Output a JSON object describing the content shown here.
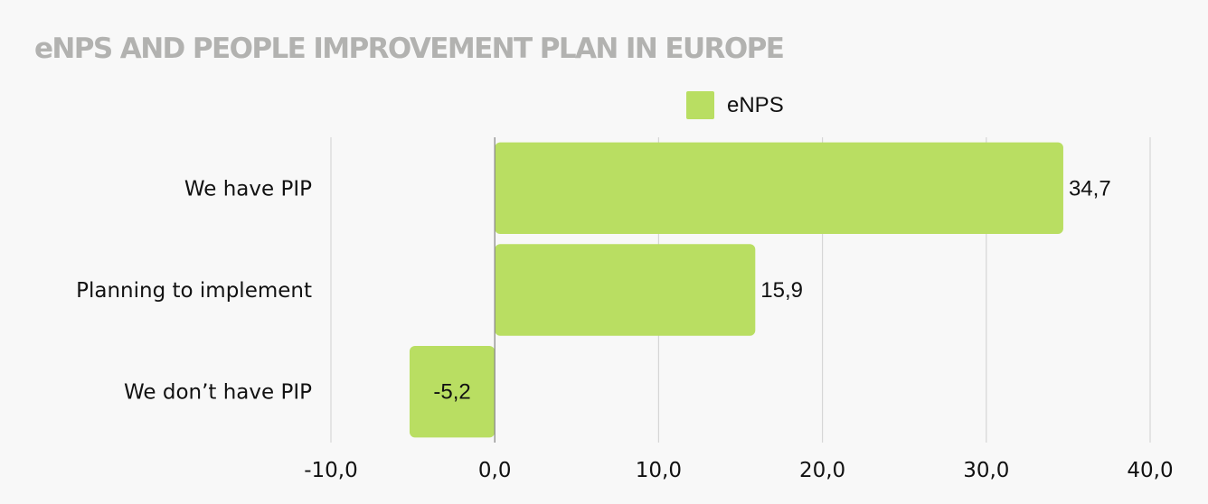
{
  "chart_data": {
    "type": "bar",
    "orientation": "horizontal",
    "title": "eNPS AND PEOPLE IMPROVEMENT PLAN IN EUROPE",
    "categories": [
      "We have PIP",
      "Planning to implement",
      "We don’t have PIP"
    ],
    "series": [
      {
        "name": "eNPS",
        "values": [
          34.7,
          15.9,
          -5.2
        ],
        "labels": [
          "34,7",
          "15,9",
          "-5,2"
        ],
        "color": "#b9de62"
      }
    ],
    "xlim": [
      -10,
      40
    ],
    "xticks": [
      -10,
      0,
      10,
      20,
      30,
      40
    ],
    "xtick_labels": [
      "-10,0",
      "0,0",
      "10,0",
      "20,0",
      "30,0",
      "40,0"
    ],
    "xlabel": "",
    "ylabel": "",
    "grid": "vertical",
    "legend": "top-center"
  },
  "colors": {
    "title": "#b2b2b0",
    "bar": "#b9de62",
    "grid": "#d6d6d6",
    "zero_line": "#8a8a8a",
    "text": "#111111"
  }
}
